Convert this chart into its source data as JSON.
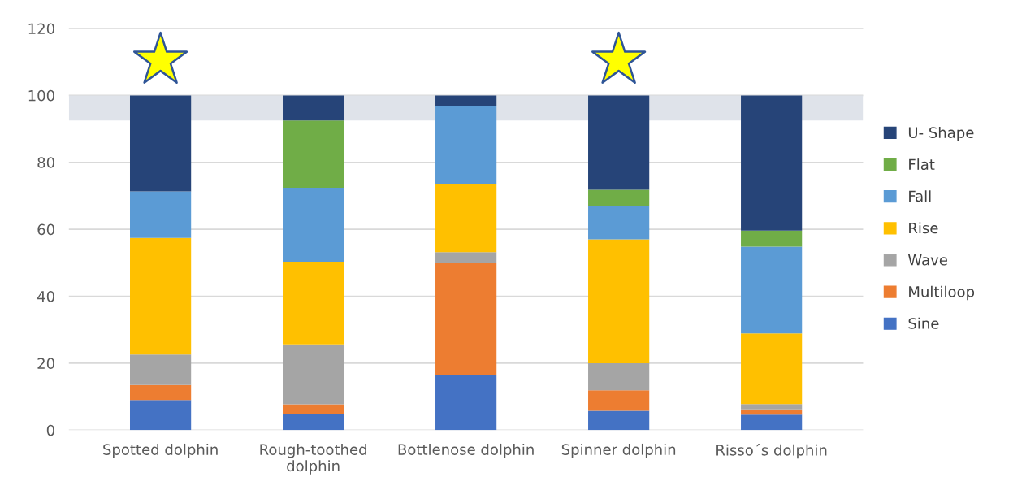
{
  "chart_data": {
    "type": "bar",
    "stacked": true,
    "categories": [
      "Spotted dolphin",
      "Rough-toothed\ndolphin",
      "Bottlenose dolphin",
      "Spinner dolphin",
      "Risso´s dolphin"
    ],
    "series": [
      {
        "name": "Sine",
        "color": "#4472c4",
        "values": [
          9.0,
          4.9,
          16.5,
          5.8,
          4.6
        ]
      },
      {
        "name": "Multiloop",
        "color": "#ed7d31",
        "values": [
          4.5,
          2.8,
          33.4,
          6.1,
          1.6
        ]
      },
      {
        "name": "Wave",
        "color": "#a5a5a5",
        "values": [
          9.1,
          17.9,
          3.3,
          8.1,
          1.6
        ]
      },
      {
        "name": "Rise",
        "color": "#ffc000",
        "values": [
          34.8,
          24.7,
          20.2,
          37.0,
          21.1
        ]
      },
      {
        "name": "Fall",
        "color": "#5b9bd5",
        "values": [
          13.9,
          22.1,
          23.3,
          10.1,
          25.9
        ]
      },
      {
        "name": "Flat",
        "color": "#70ad47",
        "values": [
          0,
          20.1,
          0,
          4.7,
          4.8
        ]
      },
      {
        "name": "U- Shape",
        "color": "#264478",
        "values": [
          28.7,
          7.5,
          3.3,
          28.2,
          40.4
        ]
      }
    ],
    "ylim": [
      0,
      120
    ],
    "yticks": [
      0,
      20,
      40,
      60,
      80,
      100,
      120
    ],
    "grid": "y",
    "legend": "right",
    "bands": [
      {
        "axis": "y",
        "from": 92.5,
        "to": 100,
        "color": "#dfe3ea"
      }
    ]
  }
}
